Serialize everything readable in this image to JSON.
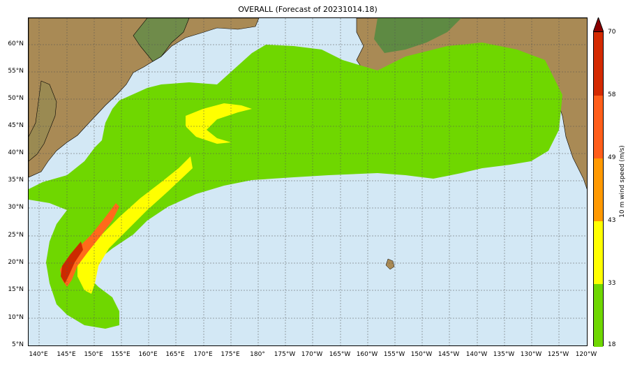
{
  "title": "OVERALL (Forecast of 20231014.18)",
  "lat_labels": [
    "60°N",
    "55°N",
    "50°N",
    "45°N",
    "40°N",
    "35°N",
    "30°N",
    "25°N",
    "20°N",
    "15°N",
    "10°N",
    "5°N"
  ],
  "lon_labels": [
    "140°E",
    "145°E",
    "150°E",
    "155°E",
    "160°E",
    "165°E",
    "170°E",
    "175°E",
    "180°",
    "175°W",
    "170°W",
    "165°W",
    "160°W",
    "155°W",
    "150°W",
    "145°W",
    "140°W",
    "135°W",
    "130°W",
    "125°W",
    "120°W"
  ],
  "colorbar": {
    "label": "10 m wind speed (m/s)",
    "ticks": [
      "18",
      "33",
      "43",
      "49",
      "58",
      "70"
    ],
    "colors": [
      "#6fd700",
      "#ffff00",
      "#ff9900",
      "#ff5e1a",
      "#d42a00",
      "#8b0000"
    ]
  },
  "colors": {
    "ocean": "#d3e8f5",
    "land": "#a98a55",
    "wind_green": "#6fd700",
    "wind_yellow": "#ffff00",
    "wind_orange": "#ff6a1a",
    "wind_red": "#cc2a00"
  }
}
